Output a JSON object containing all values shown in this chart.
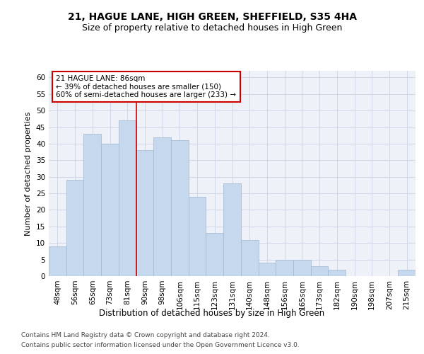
{
  "title": "21, HAGUE LANE, HIGH GREEN, SHEFFIELD, S35 4HA",
  "subtitle": "Size of property relative to detached houses in High Green",
  "xlabel": "Distribution of detached houses by size in High Green",
  "ylabel": "Number of detached properties",
  "categories": [
    "48sqm",
    "56sqm",
    "65sqm",
    "73sqm",
    "81sqm",
    "90sqm",
    "98sqm",
    "106sqm",
    "115sqm",
    "123sqm",
    "131sqm",
    "140sqm",
    "148sqm",
    "156sqm",
    "165sqm",
    "173sqm",
    "182sqm",
    "190sqm",
    "198sqm",
    "207sqm",
    "215sqm"
  ],
  "values": [
    9,
    29,
    43,
    40,
    47,
    38,
    42,
    41,
    24,
    13,
    28,
    11,
    4,
    5,
    5,
    3,
    2,
    0,
    0,
    0,
    2
  ],
  "bar_color": "#c5d8ed",
  "bar_edge_color": "#a0b8d0",
  "grid_color": "#d0d8e8",
  "background_color": "#eef2f8",
  "property_line_x": 4.5,
  "property_line_color": "#cc0000",
  "annotation_text": "21 HAGUE LANE: 86sqm\n← 39% of detached houses are smaller (150)\n60% of semi-detached houses are larger (233) →",
  "annotation_box_color": "#ffffff",
  "annotation_box_edge_color": "#cc0000",
  "ylim": [
    0,
    62
  ],
  "yticks": [
    0,
    5,
    10,
    15,
    20,
    25,
    30,
    35,
    40,
    45,
    50,
    55,
    60
  ],
  "footer_line1": "Contains HM Land Registry data © Crown copyright and database right 2024.",
  "footer_line2": "Contains public sector information licensed under the Open Government Licence v3.0.",
  "title_fontsize": 10,
  "subtitle_fontsize": 9,
  "xlabel_fontsize": 8.5,
  "ylabel_fontsize": 8,
  "tick_fontsize": 7.5,
  "annotation_fontsize": 7.5,
  "footer_fontsize": 6.5
}
